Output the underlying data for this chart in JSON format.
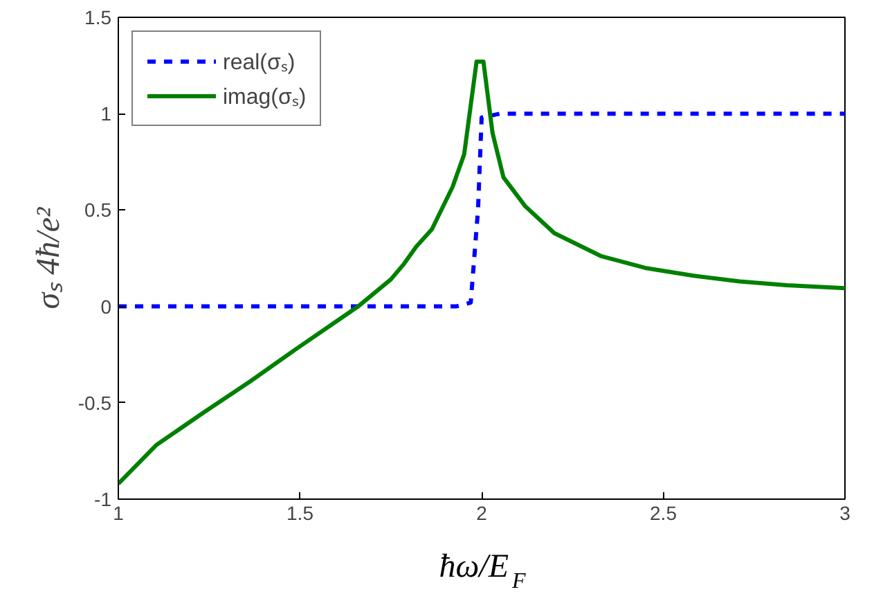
{
  "chart_data": {
    "type": "line",
    "xlabel": "ħω/E$_{F}$",
    "ylabel": "σₛ 4ħ/e²",
    "xlim": [
      1,
      3
    ],
    "ylim": [
      -1,
      1.5
    ],
    "xticks": [
      1,
      1.5,
      2,
      2.5,
      3
    ],
    "yticks": [
      -1,
      -0.5,
      0,
      0.5,
      1,
      1.5
    ],
    "grid": false,
    "legend": "top left",
    "marker": "none",
    "series": [
      {
        "name": "real(σₛ)",
        "color": "#0000ff",
        "line_style": "dashed",
        "x": [
          1,
          1.5,
          1.93,
          1.97,
          1.99,
          2.0,
          2.05,
          2.5,
          3
        ],
        "values": [
          0,
          0,
          0,
          0.02,
          0.5,
          0.98,
          1.0,
          1.0,
          1.0
        ]
      },
      {
        "name": "imag(σₛ)",
        "color": "#008000",
        "line_style": "solid",
        "x": [
          1,
          1.104,
          1.235,
          1.362,
          1.49,
          1.66,
          1.75,
          1.786,
          1.82,
          1.863,
          1.92,
          1.952,
          1.986,
          2.005,
          2.03,
          2.06,
          2.12,
          2.2,
          2.33,
          2.45,
          2.58,
          2.71,
          2.84,
          3.0
        ],
        "values": [
          -0.92,
          -0.72,
          -0.55,
          -0.39,
          -0.22,
          0.0,
          0.14,
          0.22,
          0.31,
          0.4,
          0.62,
          0.79,
          1.27,
          1.27,
          0.9,
          0.67,
          0.52,
          0.38,
          0.26,
          0.2,
          0.16,
          0.13,
          0.11,
          0.095
        ]
      }
    ]
  }
}
